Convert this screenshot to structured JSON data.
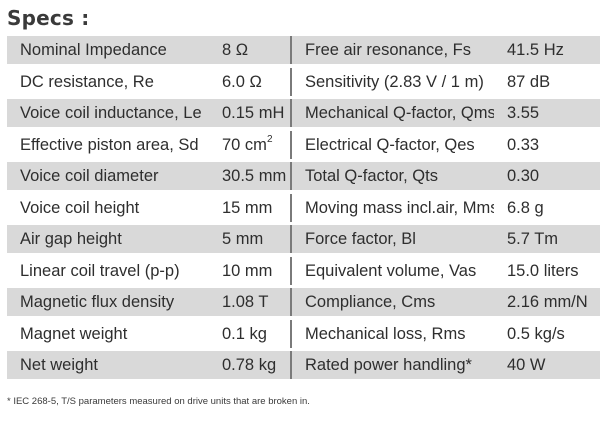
{
  "title": "Specs :",
  "rows": [
    {
      "p1": "Nominal Impedance",
      "v1": "8 Ω",
      "p2": "Free air resonance, Fs",
      "v2": "41.5 Hz"
    },
    {
      "p1": "DC resistance, Re",
      "v1": "6.0 Ω",
      "p2": "Sensitivity (2.83 V / 1 m)",
      "v2": "87 dB"
    },
    {
      "p1": "Voice coil inductance, Le",
      "v1": "0.15 mH",
      "p2": "Mechanical Q-factor, Qms",
      "v2": "3.55"
    },
    {
      "p1": "Effective piston area, Sd",
      "v1": "70 cm",
      "v1_sup": "2",
      "p2": "Electrical Q-factor, Qes",
      "v2": "0.33"
    },
    {
      "p1": "Voice coil diameter",
      "v1": "30.5 mm",
      "p2": "Total Q-factor, Qts",
      "v2": "0.30"
    },
    {
      "p1": "Voice coil height",
      "v1": "15 mm",
      "p2": "Moving mass incl.air, Mms",
      "v2": "6.8 g"
    },
    {
      "p1": "Air gap height",
      "v1": "5 mm",
      "p2": "Force factor, Bl",
      "v2": "5.7 Tm"
    },
    {
      "p1": "Linear coil travel (p-p)",
      "v1": "10 mm",
      "p2": "Equivalent volume, Vas",
      "v2": "15.0 liters"
    },
    {
      "p1": "Magnetic flux density",
      "v1": "1.08 T",
      "p2": "Compliance, Cms",
      "v2": "2.16 mm/N"
    },
    {
      "p1": "Magnet weight",
      "v1": "0.1 kg",
      "p2": "Mechanical loss, Rms",
      "v2": "0.5 kg/s"
    },
    {
      "p1": "Net weight",
      "v1": "0.78 kg",
      "p2": "Rated power handling*",
      "v2": "40 W"
    }
  ],
  "footnote": "* IEC 268-5, T/S parameters measured on drive units that are broken in.",
  "colors": {
    "row_shade": "#d9d9d9",
    "divider": "#7a7a7a",
    "text": "#2e2e2e"
  }
}
